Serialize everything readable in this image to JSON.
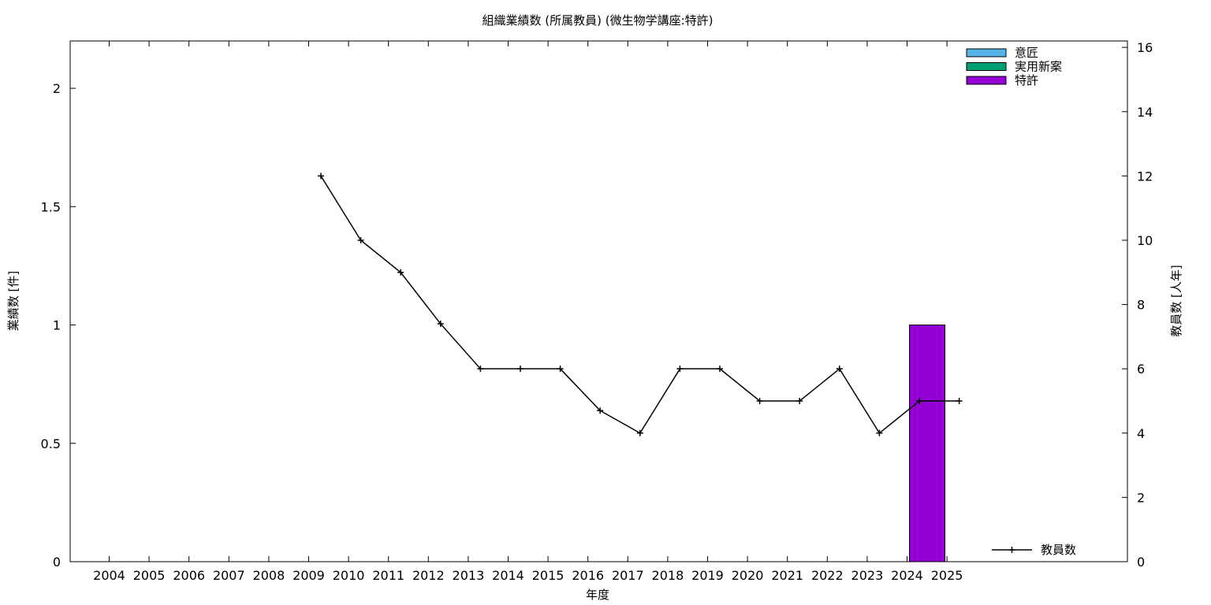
{
  "chart_data": {
    "type": "bar",
    "title": "組織業績数 (所属教員) (微生物学講座:特許)",
    "xlabel": "年度",
    "ylabel": "業績数 [件]",
    "y2label": "教員数 [人年]",
    "categories": [
      "2004",
      "2005",
      "2006",
      "2007",
      "2008",
      "2009",
      "2010",
      "2011",
      "2012",
      "2013",
      "2014",
      "2015",
      "2016",
      "2017",
      "2018",
      "2019",
      "2020",
      "2021",
      "2022",
      "2023",
      "2024",
      "2025"
    ],
    "ylim": [
      0,
      2.2
    ],
    "y_ticks": [
      "0",
      "0.5",
      "1",
      "1.5",
      "2"
    ],
    "y2lim": [
      0,
      16.2
    ],
    "y2_ticks": [
      "0",
      "2",
      "4",
      "6",
      "8",
      "10",
      "12",
      "14",
      "16"
    ],
    "legend_position": "top-right",
    "series": [
      {
        "name": "意匠",
        "kind": "bar",
        "color": "#56b4e9",
        "values": [
          0,
          0,
          0,
          0,
          0,
          0,
          0,
          0,
          0,
          0,
          0,
          0,
          0,
          0,
          0,
          0,
          0,
          0,
          0,
          0,
          0,
          0
        ]
      },
      {
        "name": "実用新案",
        "kind": "bar",
        "color": "#009e73",
        "values": [
          0,
          0,
          0,
          0,
          0,
          0,
          0,
          0,
          0,
          0,
          0,
          0,
          0,
          0,
          0,
          0,
          0,
          0,
          0,
          0,
          0,
          0
        ]
      },
      {
        "name": "特許",
        "kind": "bar",
        "color": "#9400d3",
        "values": [
          0,
          0,
          0,
          0,
          0,
          0,
          0,
          0,
          0,
          0,
          0,
          0,
          0,
          0,
          0,
          0,
          0,
          0,
          0,
          0,
          1,
          0
        ]
      },
      {
        "name": "教員数",
        "kind": "line",
        "axis": "y2",
        "color": "#000000",
        "values": [
          null,
          null,
          null,
          null,
          null,
          12,
          10,
          9,
          7.4,
          6,
          6,
          6,
          4.7,
          4,
          6,
          6,
          5,
          5,
          6,
          4,
          5,
          5
        ]
      }
    ]
  }
}
